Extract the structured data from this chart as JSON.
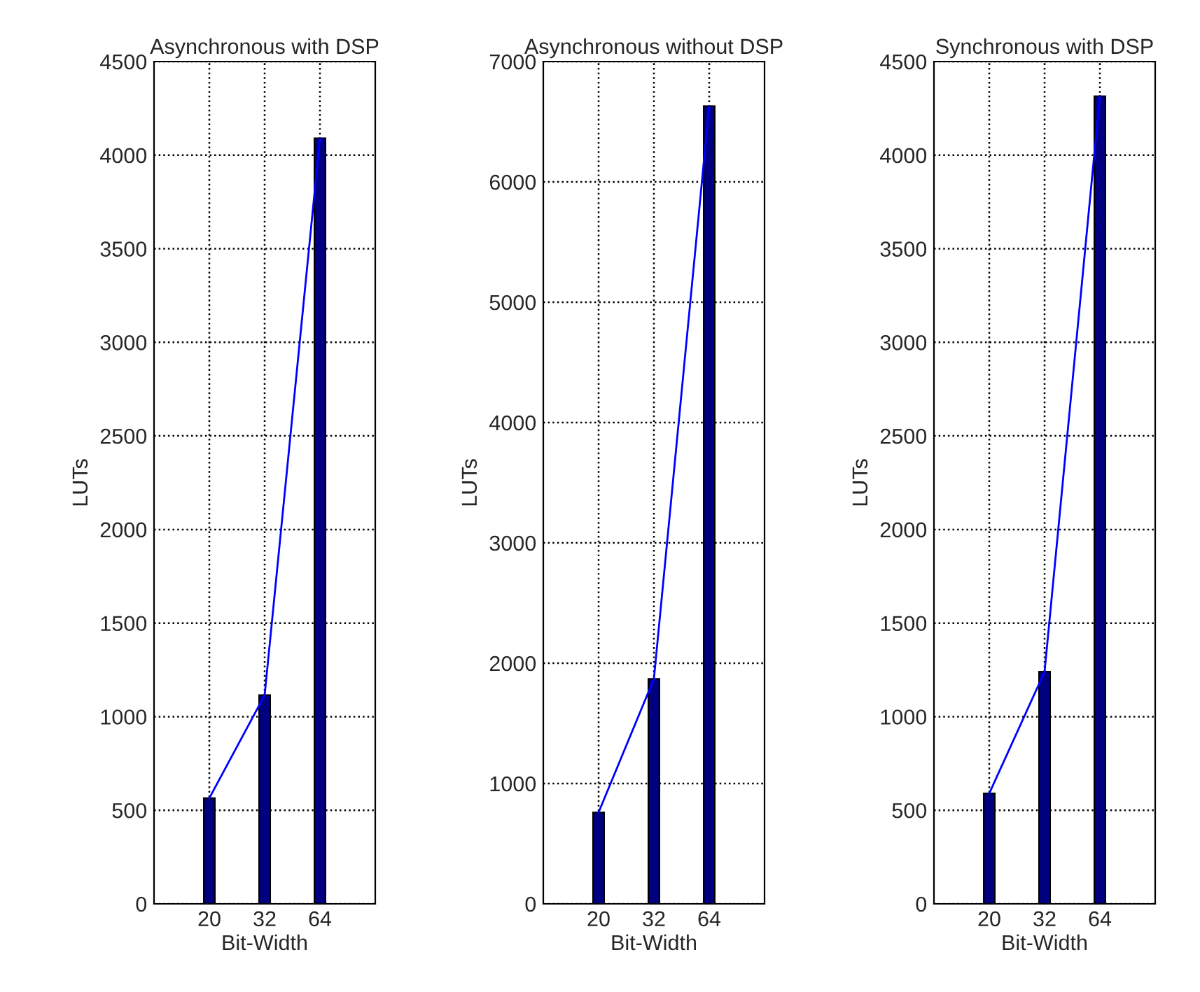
{
  "chart_data": [
    {
      "type": "bar",
      "title": "Asynchronous with DSP",
      "xlabel": "Bit-Width",
      "ylabel": "LUTs",
      "categories": [
        "20",
        "32",
        "64"
      ],
      "series": [
        {
          "color": "#000080",
          "values": [
            565,
            1115,
            4090
          ]
        },
        {
          "type": "line",
          "color": "#0000ff",
          "values": [
            565,
            1115,
            4090
          ]
        }
      ],
      "ylim": [
        0,
        4500
      ],
      "yticks": [
        0,
        500,
        1000,
        1500,
        2000,
        2500,
        3000,
        3500,
        4000,
        4500
      ],
      "grid": true,
      "line_style": "solid",
      "marker": "none"
    },
    {
      "type": "bar",
      "title": "Asynchronous without DSP",
      "xlabel": "Bit-Width",
      "ylabel": "LUTs",
      "categories": [
        "20",
        "32",
        "64"
      ],
      "series": [
        {
          "color": "#000080",
          "values": [
            760,
            1870,
            6630
          ]
        },
        {
          "type": "line",
          "color": "#0000ff",
          "values": [
            760,
            1870,
            6630
          ]
        }
      ],
      "ylim": [
        0,
        7000
      ],
      "yticks": [
        0,
        1000,
        2000,
        3000,
        4000,
        5000,
        6000,
        7000
      ],
      "grid": true,
      "line_style": "solid",
      "marker": "none"
    },
    {
      "type": "bar",
      "title": "Synchronous with DSP",
      "xlabel": "Bit-Width",
      "ylabel": "LUTs",
      "categories": [
        "20",
        "32",
        "64"
      ],
      "series": [
        {
          "color": "#000080",
          "values": [
            590,
            1240,
            4315
          ]
        },
        {
          "type": "line",
          "color": "#0000ff",
          "values": [
            590,
            1240,
            4315
          ]
        }
      ],
      "ylim": [
        0,
        4500
      ],
      "yticks": [
        0,
        500,
        1000,
        1500,
        2000,
        2500,
        3000,
        3500,
        4000,
        4500
      ],
      "grid": true,
      "line_style": "solid",
      "marker": "none"
    }
  ]
}
